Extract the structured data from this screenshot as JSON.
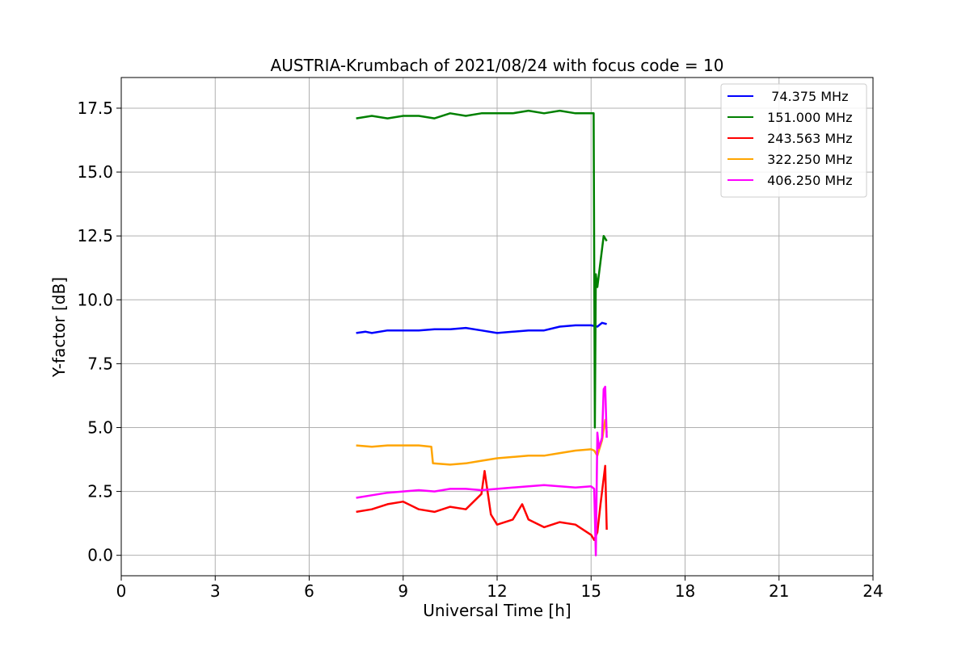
{
  "chart_data": {
    "type": "line",
    "title": "AUSTRIA-Krumbach of 2021/08/24 with focus code = 10",
    "xlabel": "Universal Time [h]",
    "ylabel": "Y-factor [dB]",
    "xlim": [
      0,
      24
    ],
    "ylim": [
      -0.8,
      18.7
    ],
    "xticks": [
      0,
      3,
      6,
      9,
      12,
      15,
      18,
      21,
      24
    ],
    "xtick_labels": [
      "0",
      "3",
      "6",
      "9",
      "12",
      "15",
      "18",
      "21",
      "24"
    ],
    "yticks": [
      0.0,
      2.5,
      5.0,
      7.5,
      10.0,
      12.5,
      15.0,
      17.5
    ],
    "ytick_labels": [
      "0.0",
      "2.5",
      "5.0",
      "7.5",
      "10.0",
      "12.5",
      "15.0",
      "17.5"
    ],
    "grid": true,
    "legend_position": "top-right",
    "series": [
      {
        "name": "  74.375 MHz",
        "color": "#0000ff",
        "x": [
          7.5,
          7.8,
          8.0,
          8.5,
          9.0,
          9.5,
          10.0,
          10.5,
          11.0,
          11.5,
          12.0,
          12.5,
          13.0,
          13.5,
          14.0,
          14.5,
          15.0,
          15.2,
          15.35,
          15.5
        ],
        "y": [
          8.7,
          8.75,
          8.7,
          8.8,
          8.8,
          8.8,
          8.85,
          8.85,
          8.9,
          8.8,
          8.7,
          8.75,
          8.8,
          8.8,
          8.95,
          9.0,
          9.0,
          8.95,
          9.1,
          9.05
        ]
      },
      {
        "name": " 151.000 MHz",
        "color": "#008000",
        "x": [
          7.5,
          8.0,
          8.5,
          9.0,
          9.5,
          10.0,
          10.5,
          11.0,
          11.5,
          12.0,
          12.5,
          13.0,
          13.5,
          14.0,
          14.5,
          15.0,
          15.08,
          15.12,
          15.15,
          15.2,
          15.3,
          15.4,
          15.5
        ],
        "y": [
          17.1,
          17.2,
          17.1,
          17.2,
          17.2,
          17.1,
          17.3,
          17.2,
          17.3,
          17.3,
          17.3,
          17.4,
          17.3,
          17.4,
          17.3,
          17.3,
          17.3,
          5.0,
          11.0,
          10.5,
          11.5,
          12.5,
          12.3
        ]
      },
      {
        "name": " 243.563 MHz",
        "color": "#ff0000",
        "x": [
          7.5,
          8.0,
          8.5,
          9.0,
          9.5,
          10.0,
          10.5,
          11.0,
          11.5,
          11.6,
          11.8,
          12.0,
          12.5,
          12.8,
          13.0,
          13.5,
          14.0,
          14.5,
          15.0,
          15.1,
          15.2,
          15.3,
          15.45,
          15.5
        ],
        "y": [
          1.7,
          1.8,
          2.0,
          2.1,
          1.8,
          1.7,
          1.9,
          1.8,
          2.4,
          3.3,
          1.6,
          1.2,
          1.4,
          2.0,
          1.4,
          1.1,
          1.3,
          1.2,
          0.8,
          0.6,
          0.9,
          2.0,
          3.5,
          1.0
        ]
      },
      {
        "name": " 322.250 MHz",
        "color": "#ffa500",
        "x": [
          7.5,
          8.0,
          8.5,
          9.0,
          9.5,
          9.9,
          9.95,
          10.5,
          11.0,
          11.5,
          12.0,
          12.5,
          13.0,
          13.5,
          14.0,
          14.5,
          15.0,
          15.1,
          15.2,
          15.35,
          15.45,
          15.5
        ],
        "y": [
          4.3,
          4.25,
          4.3,
          4.3,
          4.3,
          4.25,
          3.6,
          3.55,
          3.6,
          3.7,
          3.8,
          3.85,
          3.9,
          3.9,
          4.0,
          4.1,
          4.15,
          4.1,
          3.9,
          4.5,
          5.3,
          4.8
        ]
      },
      {
        "name": " 406.250 MHz",
        "color": "#ff00ff",
        "x": [
          7.5,
          8.0,
          8.5,
          9.0,
          9.5,
          10.0,
          10.5,
          11.0,
          11.5,
          12.0,
          12.5,
          13.0,
          13.5,
          14.0,
          14.5,
          15.0,
          15.1,
          15.15,
          15.2,
          15.25,
          15.35,
          15.4,
          15.45,
          15.5
        ],
        "y": [
          2.25,
          2.35,
          2.45,
          2.5,
          2.55,
          2.5,
          2.6,
          2.6,
          2.55,
          2.6,
          2.65,
          2.7,
          2.75,
          2.7,
          2.65,
          2.7,
          2.6,
          0.0,
          4.8,
          4.2,
          4.6,
          6.5,
          6.6,
          4.6
        ]
      }
    ]
  }
}
